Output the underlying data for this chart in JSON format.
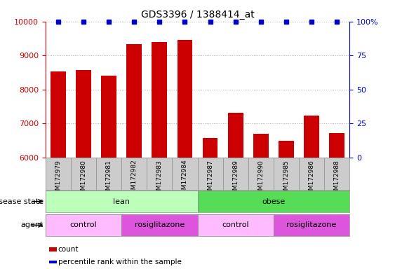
{
  "title": "GDS3396 / 1388414_at",
  "samples": [
    "GSM172979",
    "GSM172980",
    "GSM172981",
    "GSM172982",
    "GSM172983",
    "GSM172984",
    "GSM172987",
    "GSM172989",
    "GSM172990",
    "GSM172985",
    "GSM172986",
    "GSM172988"
  ],
  "counts": [
    8530,
    8570,
    8400,
    9330,
    9390,
    9450,
    6560,
    7310,
    6700,
    6490,
    7220,
    6720
  ],
  "percentile_ranks": [
    100,
    100,
    100,
    100,
    100,
    100,
    100,
    100,
    100,
    100,
    100,
    100
  ],
  "ylim_left": [
    6000,
    10000
  ],
  "ylim_right": [
    0,
    100
  ],
  "yticks_left": [
    6000,
    7000,
    8000,
    9000,
    10000
  ],
  "yticks_right": [
    0,
    25,
    50,
    75,
    100
  ],
  "bar_color": "#cc0000",
  "scatter_color": "#0000cc",
  "bar_width": 0.6,
  "disease_lean": {
    "label": "lean",
    "start": 0,
    "end": 6,
    "color": "#bbffbb"
  },
  "disease_obese": {
    "label": "obese",
    "start": 6,
    "end": 12,
    "color": "#55dd55"
  },
  "agent_blocks": [
    {
      "label": "control",
      "start": 0,
      "end": 3,
      "color": "#ffbbff"
    },
    {
      "label": "rosiglitazone",
      "start": 3,
      "end": 6,
      "color": "#dd55dd"
    },
    {
      "label": "control",
      "start": 6,
      "end": 9,
      "color": "#ffbbff"
    },
    {
      "label": "rosiglitazone",
      "start": 9,
      "end": 12,
      "color": "#dd55dd"
    }
  ],
  "xlabel_disease": "disease state",
  "xlabel_agent": "agent",
  "legend_count_color": "#cc0000",
  "legend_pct_color": "#0000cc",
  "grid_dotted_color": "#aaaaaa",
  "tick_label_color_left": "#cc0000",
  "tick_label_color_right": "#0000cc",
  "tick_bg_color": "#cccccc",
  "sample_label_fontsize": 6.5,
  "annotation_fontsize": 8.0,
  "label_fontsize": 8.0
}
